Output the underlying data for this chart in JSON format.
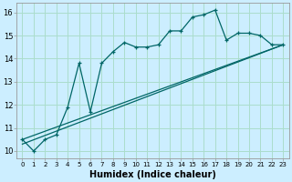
{
  "xlabel": "Humidex (Indice chaleur)",
  "xlim": [
    -0.5,
    23.5
  ],
  "ylim": [
    9.7,
    16.4
  ],
  "xticks": [
    0,
    1,
    2,
    3,
    4,
    5,
    6,
    7,
    8,
    9,
    10,
    11,
    12,
    13,
    14,
    15,
    16,
    17,
    18,
    19,
    20,
    21,
    22,
    23
  ],
  "yticks": [
    10,
    11,
    12,
    13,
    14,
    15,
    16
  ],
  "background_color": "#cceeff",
  "grid_color": "#aaddcc",
  "line_color": "#006666",
  "line1_x": [
    0,
    1,
    2,
    3,
    4,
    5,
    6,
    7,
    8,
    9,
    10,
    11,
    12,
    13,
    14,
    15,
    16,
    17,
    18,
    19,
    20,
    21,
    22,
    23
  ],
  "line1_y": [
    10.5,
    10.0,
    10.5,
    10.7,
    11.9,
    13.8,
    11.7,
    13.8,
    14.3,
    14.7,
    14.5,
    14.5,
    14.6,
    15.2,
    15.2,
    15.8,
    15.9,
    16.1,
    14.8,
    15.1,
    15.1,
    15.0,
    14.6,
    14.6
  ],
  "trend1_x0": 0,
  "trend1_y0": 10.5,
  "trend1_x1": 23,
  "trend1_y1": 14.6,
  "trend2_x0": 0,
  "trend2_y0": 10.3,
  "trend2_x1": 23,
  "trend2_y1": 14.6,
  "xtick_fontsize": 5.0,
  "ytick_fontsize": 6.0,
  "xlabel_fontsize": 7.0
}
